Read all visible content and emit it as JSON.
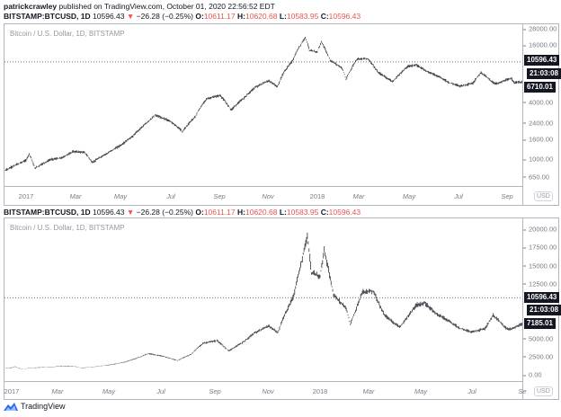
{
  "header": {
    "author": "patrickcrawley",
    "published": "published on TradingView.com, October 01, 2020 22:56:52 EDT"
  },
  "quote": {
    "symbol": "BITSTAMP:BTCUSD, 1D",
    "price": "10596.43",
    "change": "−26.28 (−0.25%)",
    "o_label": "O:",
    "o": "10611.17",
    "h_label": "H:",
    "h": "10620.68",
    "l_label": "L:",
    "l": "10583.95",
    "c_label": "C:",
    "c": "10596.43"
  },
  "colors": {
    "down": "#ef5350",
    "brand": "#2962ff",
    "candle": "#131722"
  },
  "footer": {
    "brand": "TradingView"
  },
  "chart_data": [
    {
      "type": "line",
      "scale": "log",
      "title": "Bitcoin / U.S. Dollar, 1D, BITSTAMP",
      "currency": "USD",
      "yticks": [
        "28000.00",
        "16000.00",
        "4000.00",
        "2400.00",
        "1600.00",
        "1000.00",
        "650.00"
      ],
      "ytick_values": [
        28000,
        16000,
        4000,
        2400,
        1600,
        1000,
        650
      ],
      "xticks": [
        "2017",
        "Mar",
        "May",
        "Jul",
        "Sep",
        "Nov",
        "2018",
        "Mar",
        "May",
        "Jul",
        "Sep"
      ],
      "price_line": 10596.43,
      "price_label": "10596.43",
      "countdown": "21:03:08",
      "last_label": "6710.01"
    },
    {
      "type": "line",
      "scale": "linear",
      "title": "Bitcoin / U.S. Dollar, 1D, BITSTAMP",
      "currency": "USD",
      "yticks": [
        "20000.00",
        "17500.00",
        "15000.00",
        "12500.00",
        "5000.00",
        "2500.00",
        "0.00"
      ],
      "ytick_values": [
        20000,
        17500,
        15000,
        12500,
        5000,
        2500,
        0
      ],
      "xticks": [
        "2017",
        "Mar",
        "May",
        "Jul",
        "Sep",
        "Nov",
        "2018",
        "Mar",
        "May",
        "Jul",
        "Se"
      ],
      "price_line": 10596.43,
      "price_label": "10596.43",
      "countdown": "21:03:08",
      "last_label": "7185.01"
    }
  ],
  "series": {
    "name": "BTCUSD",
    "dates": [
      "2016-12-06",
      "2017-01-01",
      "2017-01-05",
      "2017-01-12",
      "2017-02-01",
      "2017-02-15",
      "2017-03-01",
      "2017-03-15",
      "2017-03-25",
      "2017-04-15",
      "2017-05-01",
      "2017-05-15",
      "2017-06-01",
      "2017-06-12",
      "2017-07-01",
      "2017-07-16",
      "2017-08-01",
      "2017-08-15",
      "2017-09-01",
      "2017-09-15",
      "2017-10-01",
      "2017-10-15",
      "2017-11-01",
      "2017-11-12",
      "2017-11-20",
      "2017-12-01",
      "2017-12-17",
      "2017-12-22",
      "2018-01-01",
      "2018-01-06",
      "2018-01-17",
      "2018-02-01",
      "2018-02-06",
      "2018-02-20",
      "2018-03-05",
      "2018-03-18",
      "2018-04-01",
      "2018-04-06",
      "2018-04-25",
      "2018-05-05",
      "2018-05-20",
      "2018-06-01",
      "2018-06-15",
      "2018-06-29",
      "2018-07-15",
      "2018-07-25",
      "2018-08-10",
      "2018-08-15",
      "2018-09-01",
      "2018-09-05",
      "2018-09-15",
      "2018-09-28"
    ],
    "values": [
      760,
      970,
      1130,
      800,
      990,
      1030,
      1200,
      1180,
      920,
      1180,
      1420,
      1750,
      2400,
      2900,
      2500,
      1950,
      2800,
      4300,
      4700,
      3300,
      4400,
      5700,
      6700,
      5800,
      8200,
      10900,
      19200,
      14000,
      13500,
      17100,
      11000,
      9100,
      6900,
      11400,
      11500,
      8200,
      6900,
      6600,
      9600,
      9800,
      8300,
      7500,
      6400,
      5900,
      6300,
      8200,
      6300,
      6300,
      7100,
      6400,
      6500,
      6600
    ]
  }
}
